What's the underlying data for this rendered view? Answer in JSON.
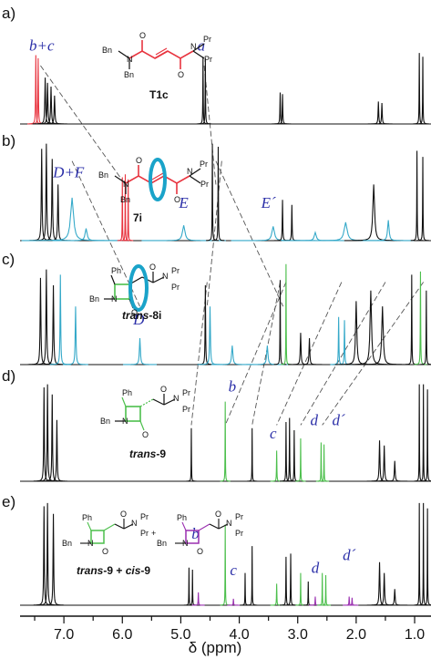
{
  "chart_data": {
    "type": "line",
    "xlabel": "δ (ppm)",
    "x_reversed": true,
    "xlim": [
      7.75,
      0.72
    ],
    "xticks": [
      {
        "value": 7.0,
        "label": "7.0"
      },
      {
        "value": 6.0,
        "label": "6.0"
      },
      {
        "value": 5.0,
        "label": "5.0"
      },
      {
        "value": 4.0,
        "label": "4.0"
      },
      {
        "value": 3.0,
        "label": "3.0"
      },
      {
        "value": 2.0,
        "label": "2.0"
      },
      {
        "value": 1.0,
        "label": "1.0"
      }
    ],
    "panels": [
      {
        "label": "a)",
        "compound": "T1c",
        "peaks": [
          {
            "ppm": 7.48,
            "h": 0.92,
            "w": 0.02,
            "c": "red"
          },
          {
            "ppm": 7.44,
            "h": 0.88,
            "w": 0.02,
            "c": "red"
          },
          {
            "ppm": 7.32,
            "h": 0.62,
            "w": 0.03,
            "c": "black"
          },
          {
            "ppm": 7.28,
            "h": 0.55,
            "w": 0.03,
            "c": "black"
          },
          {
            "ppm": 7.22,
            "h": 0.5,
            "w": 0.03,
            "c": "black"
          },
          {
            "ppm": 7.16,
            "h": 0.38,
            "w": 0.03,
            "c": "black"
          },
          {
            "ppm": 4.62,
            "h": 0.9,
            "w": 0.015,
            "c": "black"
          },
          {
            "ppm": 4.58,
            "h": 0.88,
            "w": 0.015,
            "c": "black"
          },
          {
            "ppm": 3.3,
            "h": 0.42,
            "w": 0.02,
            "c": "black"
          },
          {
            "ppm": 3.26,
            "h": 0.4,
            "w": 0.02,
            "c": "black"
          },
          {
            "ppm": 1.62,
            "h": 0.3,
            "w": 0.025,
            "c": "black"
          },
          {
            "ppm": 1.56,
            "h": 0.28,
            "w": 0.025,
            "c": "black"
          },
          {
            "ppm": 0.92,
            "h": 0.95,
            "w": 0.015,
            "c": "black"
          },
          {
            "ppm": 0.86,
            "h": 0.9,
            "w": 0.015,
            "c": "black"
          }
        ],
        "labels": [
          {
            "text": "b+c",
            "ppm": 7.38,
            "dy": -0.98
          },
          {
            "text": "a",
            "ppm": 4.65,
            "dy": -0.98
          }
        ]
      },
      {
        "label": "b)",
        "compound": "7i",
        "peaks": [
          {
            "ppm": 7.38,
            "h": 0.9,
            "w": 0.03,
            "c": "black"
          },
          {
            "ppm": 7.3,
            "h": 0.95,
            "w": 0.03,
            "c": "black"
          },
          {
            "ppm": 7.2,
            "h": 0.8,
            "w": 0.03,
            "c": "black"
          },
          {
            "ppm": 7.1,
            "h": 0.55,
            "w": 0.03,
            "c": "black"
          },
          {
            "ppm": 6.86,
            "h": 0.42,
            "w": 0.12,
            "c": "cyan"
          },
          {
            "ppm": 6.62,
            "h": 0.12,
            "w": 0.08,
            "c": "cyan"
          },
          {
            "ppm": 6.0,
            "h": 0.62,
            "w": 0.012,
            "c": "red"
          },
          {
            "ppm": 5.95,
            "h": 0.65,
            "w": 0.012,
            "c": "red"
          },
          {
            "ppm": 5.9,
            "h": 0.6,
            "w": 0.012,
            "c": "red"
          },
          {
            "ppm": 4.95,
            "h": 0.15,
            "w": 0.1,
            "c": "cyan"
          },
          {
            "ppm": 4.46,
            "h": 0.95,
            "w": 0.015,
            "c": "black"
          },
          {
            "ppm": 4.36,
            "h": 0.92,
            "w": 0.015,
            "c": "black"
          },
          {
            "ppm": 3.42,
            "h": 0.14,
            "w": 0.1,
            "c": "cyan"
          },
          {
            "ppm": 3.26,
            "h": 0.4,
            "w": 0.02,
            "c": "black"
          },
          {
            "ppm": 3.1,
            "h": 0.35,
            "w": 0.02,
            "c": "black"
          },
          {
            "ppm": 2.7,
            "h": 0.08,
            "w": 0.08,
            "c": "cyan"
          },
          {
            "ppm": 2.18,
            "h": 0.18,
            "w": 0.12,
            "c": "cyan"
          },
          {
            "ppm": 1.7,
            "h": 0.55,
            "w": 0.07,
            "c": "black"
          },
          {
            "ppm": 1.45,
            "h": 0.2,
            "w": 0.06,
            "c": "cyan"
          },
          {
            "ppm": 0.96,
            "h": 0.88,
            "w": 0.015,
            "c": "black"
          },
          {
            "ppm": 0.86,
            "h": 0.82,
            "w": 0.015,
            "c": "black"
          }
        ],
        "labels": [
          {
            "text": "D+F",
            "ppm": 6.92,
            "dy": -0.62
          },
          {
            "text": "E",
            "ppm": 4.95,
            "dy": -0.32
          },
          {
            "text": "E´",
            "ppm": 3.5,
            "dy": -0.32
          }
        ]
      },
      {
        "label": "c)",
        "compound": "trans-8i",
        "peaks": [
          {
            "ppm": 7.4,
            "h": 0.82,
            "w": 0.03,
            "c": "black"
          },
          {
            "ppm": 7.3,
            "h": 0.9,
            "w": 0.03,
            "c": "black"
          },
          {
            "ppm": 7.18,
            "h": 0.75,
            "w": 0.03,
            "c": "black"
          },
          {
            "ppm": 7.06,
            "h": 0.85,
            "w": 0.025,
            "c": "cyan"
          },
          {
            "ppm": 6.8,
            "h": 0.55,
            "w": 0.03,
            "c": "cyan"
          },
          {
            "ppm": 5.7,
            "h": 0.25,
            "w": 0.04,
            "c": "cyan"
          },
          {
            "ppm": 4.58,
            "h": 0.75,
            "w": 0.02,
            "c": "black"
          },
          {
            "ppm": 4.5,
            "h": 0.55,
            "w": 0.03,
            "c": "cyan"
          },
          {
            "ppm": 4.12,
            "h": 0.18,
            "w": 0.05,
            "c": "cyan"
          },
          {
            "ppm": 3.52,
            "h": 0.18,
            "w": 0.05,
            "c": "cyan"
          },
          {
            "ppm": 3.3,
            "h": 0.8,
            "w": 0.015,
            "c": "black"
          },
          {
            "ppm": 3.2,
            "h": 0.95,
            "w": 0.012,
            "c": "green"
          },
          {
            "ppm": 2.95,
            "h": 0.3,
            "w": 0.03,
            "c": "black"
          },
          {
            "ppm": 2.8,
            "h": 0.25,
            "w": 0.03,
            "c": "black"
          },
          {
            "ppm": 2.3,
            "h": 0.45,
            "w": 0.02,
            "c": "cyan"
          },
          {
            "ppm": 2.2,
            "h": 0.42,
            "w": 0.02,
            "c": "cyan"
          },
          {
            "ppm": 2.0,
            "h": 0.6,
            "w": 0.05,
            "c": "black"
          },
          {
            "ppm": 1.75,
            "h": 0.7,
            "w": 0.06,
            "c": "black"
          },
          {
            "ppm": 1.55,
            "h": 0.55,
            "w": 0.06,
            "c": "black"
          },
          {
            "ppm": 1.05,
            "h": 0.85,
            "w": 0.015,
            "c": "black"
          },
          {
            "ppm": 0.9,
            "h": 0.88,
            "w": 0.015,
            "c": "green"
          },
          {
            "ppm": 0.8,
            "h": 0.7,
            "w": 0.015,
            "c": "black"
          }
        ],
        "labels": [
          {
            "text": "D",
            "ppm": 5.72,
            "dy": -0.38
          }
        ]
      },
      {
        "label": "d)",
        "compound": "trans-9",
        "peaks": [
          {
            "ppm": 7.34,
            "h": 0.92,
            "w": 0.025,
            "c": "black"
          },
          {
            "ppm": 7.28,
            "h": 0.95,
            "w": 0.025,
            "c": "black"
          },
          {
            "ppm": 7.2,
            "h": 0.85,
            "w": 0.025,
            "c": "black"
          },
          {
            "ppm": 7.12,
            "h": 0.6,
            "w": 0.025,
            "c": "black"
          },
          {
            "ppm": 4.82,
            "h": 0.52,
            "w": 0.012,
            "c": "black"
          },
          {
            "ppm": 4.24,
            "h": 0.78,
            "w": 0.012,
            "c": "green"
          },
          {
            "ppm": 3.78,
            "h": 0.52,
            "w": 0.012,
            "c": "black"
          },
          {
            "ppm": 3.36,
            "h": 0.3,
            "w": 0.015,
            "c": "green"
          },
          {
            "ppm": 3.2,
            "h": 0.58,
            "w": 0.015,
            "c": "black"
          },
          {
            "ppm": 3.14,
            "h": 0.62,
            "w": 0.015,
            "c": "black"
          },
          {
            "ppm": 3.06,
            "h": 0.5,
            "w": 0.015,
            "c": "black"
          },
          {
            "ppm": 2.95,
            "h": 0.42,
            "w": 0.012,
            "c": "green"
          },
          {
            "ppm": 2.6,
            "h": 0.38,
            "w": 0.012,
            "c": "green"
          },
          {
            "ppm": 2.55,
            "h": 0.36,
            "w": 0.012,
            "c": "green"
          },
          {
            "ppm": 1.6,
            "h": 0.4,
            "w": 0.03,
            "c": "black"
          },
          {
            "ppm": 1.52,
            "h": 0.35,
            "w": 0.03,
            "c": "black"
          },
          {
            "ppm": 1.34,
            "h": 0.2,
            "w": 0.03,
            "c": "black"
          },
          {
            "ppm": 0.92,
            "h": 0.95,
            "w": 0.012,
            "c": "black"
          },
          {
            "ppm": 0.85,
            "h": 0.95,
            "w": 0.012,
            "c": "black"
          },
          {
            "ppm": 0.78,
            "h": 0.9,
            "w": 0.012,
            "c": "black"
          }
        ],
        "labels": [
          {
            "text": "b",
            "ppm": 4.12,
            "dy": -0.88
          },
          {
            "text": "c",
            "ppm": 3.42,
            "dy": -0.42
          },
          {
            "text": "d",
            "ppm": 2.72,
            "dy": -0.55
          },
          {
            "text": "d´",
            "ppm": 2.3,
            "dy": -0.55
          }
        ]
      },
      {
        "label": "e)",
        "compound": "trans-9 + cis-9",
        "peaks": [
          {
            "ppm": 7.34,
            "h": 0.92,
            "w": 0.025,
            "c": "black"
          },
          {
            "ppm": 7.28,
            "h": 0.95,
            "w": 0.025,
            "c": "black"
          },
          {
            "ppm": 7.18,
            "h": 0.85,
            "w": 0.025,
            "c": "black"
          },
          {
            "ppm": 4.86,
            "h": 0.35,
            "w": 0.012,
            "c": "black"
          },
          {
            "ppm": 4.8,
            "h": 0.33,
            "w": 0.012,
            "c": "black"
          },
          {
            "ppm": 4.7,
            "h": 0.12,
            "w": 0.015,
            "c": "purple"
          },
          {
            "ppm": 4.24,
            "h": 0.75,
            "w": 0.012,
            "c": "green"
          },
          {
            "ppm": 4.1,
            "h": 0.06,
            "w": 0.015,
            "c": "purple"
          },
          {
            "ppm": 3.9,
            "h": 0.3,
            "w": 0.012,
            "c": "black"
          },
          {
            "ppm": 3.78,
            "h": 0.55,
            "w": 0.012,
            "c": "black"
          },
          {
            "ppm": 3.36,
            "h": 0.2,
            "w": 0.015,
            "c": "green"
          },
          {
            "ppm": 3.2,
            "h": 0.45,
            "w": 0.015,
            "c": "black"
          },
          {
            "ppm": 3.12,
            "h": 0.48,
            "w": 0.015,
            "c": "black"
          },
          {
            "ppm": 2.95,
            "h": 0.3,
            "w": 0.012,
            "c": "green"
          },
          {
            "ppm": 2.82,
            "h": 0.22,
            "w": 0.012,
            "c": "black"
          },
          {
            "ppm": 2.7,
            "h": 0.08,
            "w": 0.015,
            "c": "purple"
          },
          {
            "ppm": 2.58,
            "h": 0.3,
            "w": 0.012,
            "c": "green"
          },
          {
            "ppm": 2.52,
            "h": 0.28,
            "w": 0.012,
            "c": "green"
          },
          {
            "ppm": 2.12,
            "h": 0.08,
            "w": 0.015,
            "c": "purple"
          },
          {
            "ppm": 2.07,
            "h": 0.07,
            "w": 0.015,
            "c": "purple"
          },
          {
            "ppm": 1.6,
            "h": 0.4,
            "w": 0.03,
            "c": "black"
          },
          {
            "ppm": 1.52,
            "h": 0.3,
            "w": 0.03,
            "c": "black"
          },
          {
            "ppm": 1.34,
            "h": 0.15,
            "w": 0.03,
            "c": "black"
          },
          {
            "ppm": 0.92,
            "h": 0.95,
            "w": 0.012,
            "c": "black"
          },
          {
            "ppm": 0.85,
            "h": 0.95,
            "w": 0.012,
            "c": "black"
          },
          {
            "ppm": 0.78,
            "h": 0.9,
            "w": 0.012,
            "c": "black"
          }
        ],
        "labels": [
          {
            "text": "b",
            "ppm": 4.75,
            "dy": -0.62
          },
          {
            "text": "c",
            "ppm": 4.1,
            "dy": -0.28
          },
          {
            "text": "d",
            "ppm": 2.7,
            "dy": -0.3
          },
          {
            "text": "d´",
            "ppm": 2.12,
            "dy": -0.42
          }
        ]
      }
    ],
    "correlation_lines": [
      {
        "from_panel": 0,
        "from_ppm": 7.4,
        "to_panel": 1,
        "to_ppm": 5.95
      },
      {
        "from_panel": 0,
        "from_ppm": 4.6,
        "to_panel": 1,
        "to_ppm": 4.4
      },
      {
        "from_panel": 1,
        "from_ppm": 6.86,
        "to_panel": 2,
        "to_ppm": 5.7
      },
      {
        "from_panel": 1,
        "from_ppm": 4.4,
        "to_panel": 2,
        "to_ppm": 3.25
      },
      {
        "from_panel": 1,
        "from_ppm": 4.3,
        "to_panel": 2,
        "to_ppm": 4.55
      },
      {
        "from_panel": 2,
        "from_ppm": 4.55,
        "to_panel": 3,
        "to_ppm": 4.82
      },
      {
        "from_panel": 2,
        "from_ppm": 3.3,
        "to_panel": 3,
        "to_ppm": 3.78
      },
      {
        "from_panel": 2,
        "from_ppm": 3.2,
        "to_panel": 3,
        "to_ppm": 4.24
      },
      {
        "from_panel": 2,
        "from_ppm": 2.25,
        "to_panel": 3,
        "to_ppm": 3.36
      },
      {
        "from_panel": 2,
        "from_ppm": 1.5,
        "to_panel": 3,
        "to_ppm": 2.95
      },
      {
        "from_panel": 2,
        "from_ppm": 0.85,
        "to_panel": 3,
        "to_ppm": 2.58
      }
    ],
    "series_colors": {
      "black": "#111111",
      "red": "#e8343f",
      "cyan": "#35a9c9",
      "green": "#4cbf4c",
      "purple": "#9a2fb0"
    }
  },
  "structures": {
    "T1c": {
      "caption": "T1c",
      "atoms": [
        "Bn",
        "N",
        "Bn",
        "O",
        "O",
        "N",
        "Pr",
        "Pr"
      ]
    },
    "7i": {
      "caption": "7i",
      "atoms": [
        "Bn",
        "N",
        "Bn",
        "O",
        "O",
        "N",
        "Pr",
        "Pr"
      ]
    },
    "trans8i": {
      "caption_it": "trans",
      "caption": "-8i",
      "atoms": [
        "Ph",
        "Bn",
        "N",
        "O",
        "O",
        "N",
        "Pr",
        "Pr"
      ]
    },
    "trans9": {
      "caption_it": "trans",
      "caption": "-9",
      "atoms": [
        "Ph",
        "Bn",
        "N",
        "O",
        "O",
        "N",
        "Pr",
        "Pr"
      ]
    },
    "mix": {
      "caption_1it": "trans",
      "caption_1": "-9",
      "plus": " + ",
      "caption_2it": "cis",
      "caption_2": "-9",
      "atoms_left": [
        "Ph",
        "Bn",
        "N",
        "O",
        "O",
        "N",
        "Pr",
        "Pr"
      ],
      "atoms_right": [
        "Ph",
        "Bn",
        "N",
        "O",
        "O",
        "N",
        "Pr",
        "Pr"
      ],
      "plus_sign": "+"
    }
  }
}
